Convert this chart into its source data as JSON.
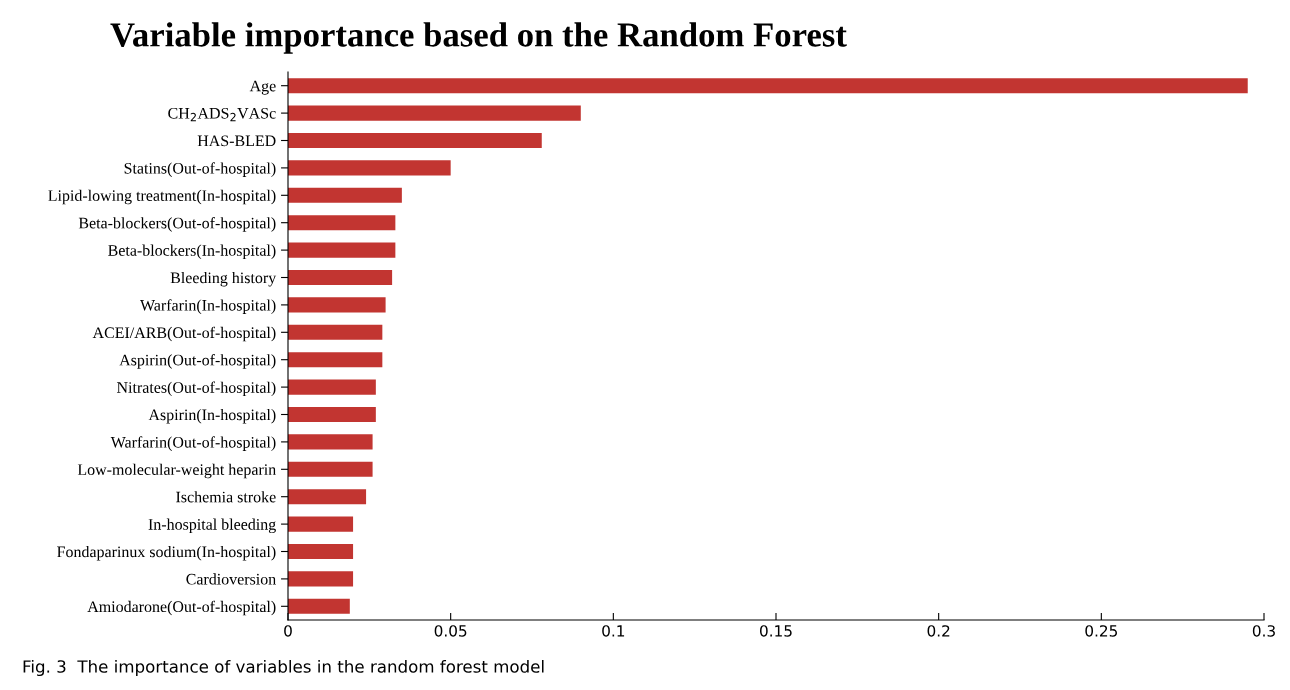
{
  "chart_data": {
    "type": "bar",
    "orientation": "horizontal",
    "title": "Variable importance based on the Random Forest",
    "categories": [
      "Age",
      "CH$_{2}$ADS$_{2}$VASc",
      "HAS-BLED",
      "Statins(Out-of-hospital)",
      "Lipid-lowing treatment(In-hospital)",
      "Beta-blockers(Out-of-hospital)",
      "Beta-blockers(In-hospital)",
      "Bleeding history",
      "Warfarin(In-hospital)",
      "ACEI/ARB(Out-of-hospital)",
      "Aspirin(Out-of-hospital)",
      "Nitrates(Out-of-hospital)",
      "Aspirin(In-hospital)",
      "Warfarin(Out-of-hospital)",
      "Low-molecular-weight heparin",
      "Ischemia stroke",
      "In-hospital bleeding",
      "Fondaparinux sodium(In-hospital)",
      "Cardioversion",
      "Amiodarone(Out-of-hospital)"
    ],
    "values": [
      0.295,
      0.09,
      0.078,
      0.05,
      0.035,
      0.033,
      0.033,
      0.032,
      0.03,
      0.029,
      0.029,
      0.027,
      0.027,
      0.026,
      0.026,
      0.024,
      0.02,
      0.02,
      0.02,
      0.019
    ],
    "color": "#c23531",
    "xlim": [
      0,
      0.3
    ],
    "xticks": [
      0,
      0.05,
      0.1,
      0.15,
      0.2,
      0.25,
      0.3
    ],
    "grid": false,
    "legend": false,
    "annotations": [
      "Fig. 3  The importance of variables in the random forest model"
    ]
  }
}
